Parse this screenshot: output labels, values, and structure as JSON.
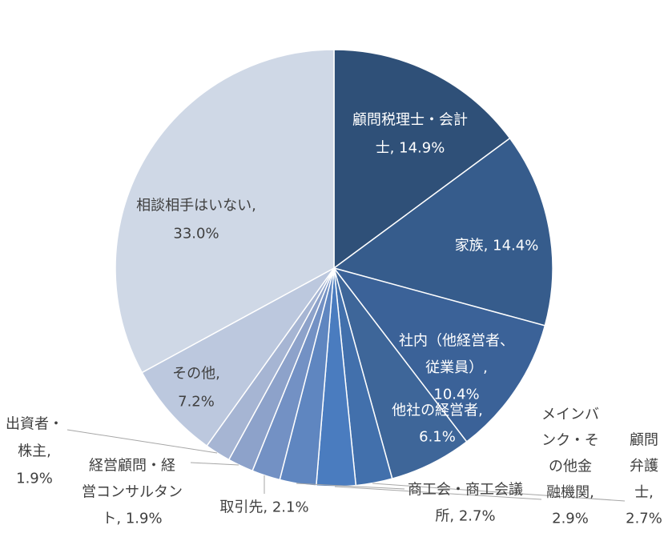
{
  "chart_data": {
    "type": "pie",
    "title": "",
    "categories": [
      "顧問税理士・会計士",
      "家族",
      "社内（他経営者、従業員）",
      "他社の経営者",
      "顧問弁護士",
      "メインバンク・その他金融機関",
      "商工会・商工会議所",
      "取引先",
      "経営顧問・経営コンサルタント",
      "出資者・株主",
      "その他",
      "相談相手はいない"
    ],
    "values": [
      14.9,
      14.4,
      10.4,
      6.1,
      2.7,
      2.9,
      2.7,
      2.1,
      1.9,
      1.9,
      7.2,
      33.0
    ],
    "data_labels": [
      "顧問税理士・会計士, 14.9%",
      "家族, 14.4%",
      "社内（他経営者、従業員）, 10.4%",
      "他社の経営者, 6.1%",
      "顧問弁護士, 2.7%",
      "メインバンク・その他金融機関, 2.9%",
      "商工会・商工会議所, 2.7%",
      "取引先, 2.1%",
      "経営顧問・経営コンサルタント, 1.9%",
      "出資者・株主, 1.9%",
      "その他, 7.2%",
      "相談相手はいない, 33.0%"
    ],
    "colors": [
      "#2F5078",
      "#365C8C",
      "#3B6298",
      "#3E6699",
      "#4270AC",
      "#4A7CBF",
      "#5F86C0",
      "#7391C4",
      "#8DA2CA",
      "#A6B5D3",
      "#BCC8DE",
      "#CFD8E6"
    ],
    "legend": "none",
    "label_text_color_dark": "#404040",
    "label_text_color_light": "#FFFFFF",
    "leader_line_color": "#A6A6A6"
  }
}
